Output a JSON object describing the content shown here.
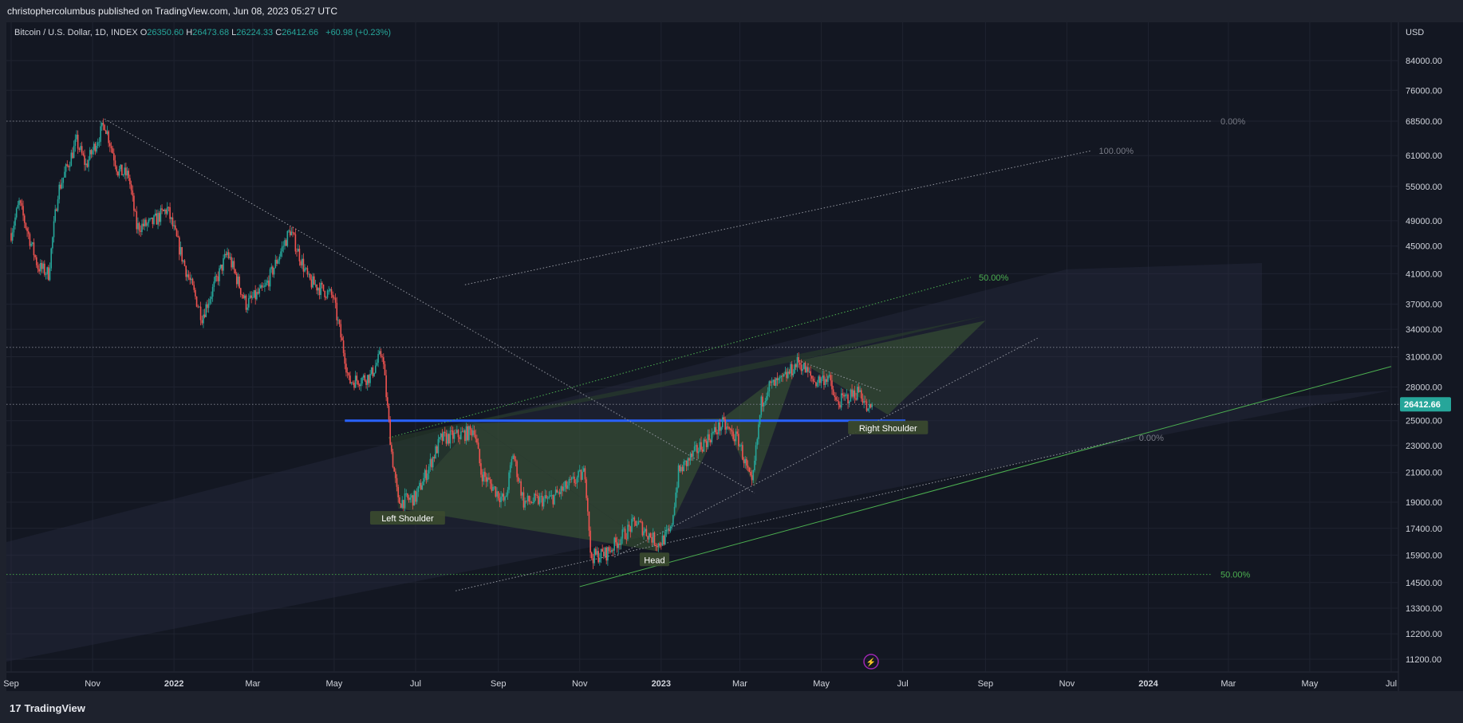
{
  "header": {
    "published_text": "christophercolumbus published on TradingView.com, Jun 08, 2023 05:27 UTC"
  },
  "legend": {
    "symbol": "Bitcoin / U.S. Dollar, 1D, INDEX",
    "open_label": "O",
    "open": "26350.60",
    "high_label": "H",
    "high": "26473.68",
    "low_label": "L",
    "low": "26224.33",
    "close_label": "C",
    "close": "26412.66",
    "change": "+60.98 (+0.23%)"
  },
  "footer": {
    "brand": "TradingView",
    "logo_icon": "tradingview-logo-icon"
  },
  "colors": {
    "background": "#131722",
    "up": "#26a69a",
    "down": "#ef5350",
    "accent_green": "#4caf50",
    "neckline_blue": "#2962ff",
    "price_badge": "#26a69a"
  },
  "chart_data": {
    "type": "candlestick",
    "title": "Bitcoin / U.S. Dollar, 1D, INDEX",
    "currency_label": "USD",
    "y_scale": "log",
    "ylim": [
      11200,
      95000
    ],
    "xlim": [
      "2021-09-01",
      "2024-07-01"
    ],
    "y_ticks": [
      84000,
      76000,
      68500,
      61000,
      55000,
      49000,
      45000,
      41000,
      37000,
      34000,
      31000,
      28000,
      25000,
      23000,
      21000,
      19000,
      17400,
      15900,
      14500,
      13300,
      12200,
      11200
    ],
    "x_ticks": [
      {
        "label": "Sep",
        "date": "2021-09-01"
      },
      {
        "label": "Nov",
        "date": "2021-11-01"
      },
      {
        "label": "2022",
        "date": "2022-01-01",
        "bold": true
      },
      {
        "label": "Mar",
        "date": "2022-03-01"
      },
      {
        "label": "May",
        "date": "2022-05-01"
      },
      {
        "label": "Jul",
        "date": "2022-07-01"
      },
      {
        "label": "Sep",
        "date": "2022-09-01"
      },
      {
        "label": "Nov",
        "date": "2022-11-01"
      },
      {
        "label": "2023",
        "date": "2023-01-01",
        "bold": true
      },
      {
        "label": "Mar",
        "date": "2023-03-01"
      },
      {
        "label": "May",
        "date": "2023-05-01"
      },
      {
        "label": "Jul",
        "date": "2023-07-01"
      },
      {
        "label": "Sep",
        "date": "2023-09-01"
      },
      {
        "label": "Nov",
        "date": "2023-11-01"
      },
      {
        "label": "2024",
        "date": "2024-01-01",
        "bold": true
      },
      {
        "label": "Mar",
        "date": "2024-03-01"
      },
      {
        "label": "May",
        "date": "2024-05-01"
      },
      {
        "label": "Jul",
        "date": "2024-07-01"
      }
    ],
    "last_price": 26412.66,
    "last_price_label": "26412.66",
    "price_path": [
      [
        "2021-09-01",
        47000
      ],
      [
        "2021-09-07",
        52000
      ],
      [
        "2021-09-21",
        42000
      ],
      [
        "2021-09-29",
        41000
      ],
      [
        "2021-10-06",
        54000
      ],
      [
        "2021-10-20",
        64000
      ],
      [
        "2021-10-27",
        59000
      ],
      [
        "2021-11-10",
        68000
      ],
      [
        "2021-11-20",
        58000
      ],
      [
        "2021-11-28",
        57000
      ],
      [
        "2021-12-04",
        48000
      ],
      [
        "2021-12-15",
        48500
      ],
      [
        "2021-12-27",
        51000
      ],
      [
        "2022-01-10",
        41500
      ],
      [
        "2022-01-22",
        35500
      ],
      [
        "2022-02-10",
        44000
      ],
      [
        "2022-02-24",
        37000
      ],
      [
        "2022-03-10",
        39000
      ],
      [
        "2022-03-29",
        47500
      ],
      [
        "2022-04-12",
        40000
      ],
      [
        "2022-04-30",
        38000
      ],
      [
        "2022-05-09",
        31000
      ],
      [
        "2022-05-12",
        28500
      ],
      [
        "2022-05-28",
        29000
      ],
      [
        "2022-06-06",
        31500
      ],
      [
        "2022-06-13",
        22500
      ],
      [
        "2022-06-18",
        19000
      ],
      [
        "2022-07-01",
        19300
      ],
      [
        "2022-07-20",
        23500
      ],
      [
        "2022-08-10",
        24000
      ],
      [
        "2022-08-14",
        24400
      ],
      [
        "2022-08-19",
        21000
      ],
      [
        "2022-09-06",
        19000
      ],
      [
        "2022-09-12",
        22400
      ],
      [
        "2022-09-20",
        19000
      ],
      [
        "2022-10-10",
        19200
      ],
      [
        "2022-10-25",
        20200
      ],
      [
        "2022-11-05",
        21000
      ],
      [
        "2022-11-08",
        17500
      ],
      [
        "2022-11-09",
        15800
      ],
      [
        "2022-11-21",
        16000
      ],
      [
        "2022-12-13",
        17800
      ],
      [
        "2022-12-30",
        16500
      ],
      [
        "2023-01-08",
        17200
      ],
      [
        "2023-01-14",
        21000
      ],
      [
        "2023-01-31",
        23000
      ],
      [
        "2023-02-16",
        24700
      ],
      [
        "2023-02-28",
        23400
      ],
      [
        "2023-03-10",
        20000
      ],
      [
        "2023-03-17",
        26500
      ],
      [
        "2023-03-22",
        28000
      ],
      [
        "2023-04-01",
        28500
      ],
      [
        "2023-04-14",
        30500
      ],
      [
        "2023-04-26",
        28500
      ],
      [
        "2023-05-06",
        29000
      ],
      [
        "2023-05-12",
        26500
      ],
      [
        "2023-05-23",
        27200
      ],
      [
        "2023-05-30",
        27700
      ],
      [
        "2023-06-05",
        25700
      ],
      [
        "2023-06-08",
        26412.66
      ]
    ],
    "horizontal_levels": [
      {
        "price": 68500,
        "style": "dotted",
        "label": "0.00%"
      },
      {
        "price": 32000,
        "style": "dotted"
      },
      {
        "price": 26412.66,
        "style": "dotted"
      },
      {
        "price": 14900,
        "style": "dotted",
        "color": "green",
        "label": "50.00%"
      }
    ],
    "neckline": {
      "from": [
        "2022-05-09",
        25000
      ],
      "to": [
        "2023-07-03",
        25000
      ],
      "color": "blue"
    },
    "trendlines": [
      {
        "from": [
          "2021-11-10",
          69000
        ],
        "to": [
          "2023-03-12",
          19600
        ],
        "style": "dotted"
      },
      {
        "from": [
          "2022-11-27",
          15800
        ],
        "to": [
          "2023-10-10",
          33000
        ],
        "style": "dotted"
      },
      {
        "from": [
          "2022-11-01",
          14300
        ],
        "to": [
          "2024-07-01",
          30000
        ],
        "style": "solid",
        "color": "green"
      },
      {
        "from": [
          "2022-06-11",
          23600
        ],
        "to": [
          "2023-08-21",
          40500
        ],
        "style": "dotted",
        "color": "green",
        "label": "50.00%"
      },
      {
        "from": [
          "2022-08-07",
          39500
        ],
        "to": [
          "2023-11-19",
          62000
        ],
        "style": "dotted",
        "label": "100.00%"
      },
      {
        "from": [
          "2022-07-31",
          14100
        ],
        "to": [
          "2023-12-19",
          23600
        ],
        "style": "dotted",
        "label": "0.00%"
      },
      {
        "from": [
          "2023-04-14",
          30600
        ],
        "to": [
          "2023-06-15",
          27600
        ],
        "style": "dotted"
      }
    ],
    "annotations": [
      {
        "text": "Left Shoulder",
        "date": "2022-06-25",
        "price": 18000
      },
      {
        "text": "Head",
        "date": "2022-12-27",
        "price": 15650
      },
      {
        "text": "Right Shoulder",
        "date": "2023-06-20",
        "price": 24400
      }
    ]
  }
}
